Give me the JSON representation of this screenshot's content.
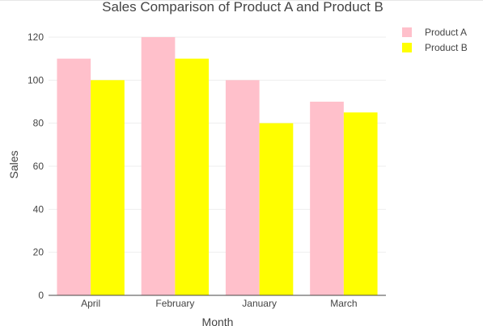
{
  "chart_data": {
    "type": "bar",
    "title": "Sales Comparison of Product A and Product B",
    "xlabel": "Month",
    "ylabel": "Sales",
    "categories": [
      "April",
      "February",
      "January",
      "March"
    ],
    "series": [
      {
        "name": "Product A",
        "values": [
          110,
          120,
          100,
          90
        ],
        "color": "#ffc0cb"
      },
      {
        "name": "Product B",
        "values": [
          100,
          110,
          80,
          85
        ],
        "color": "#ffff00"
      }
    ],
    "ylim": [
      0,
      126
    ],
    "yticks": [
      0,
      20,
      40,
      60,
      80,
      100,
      120
    ],
    "ytick_labels": [
      "0",
      "20",
      "40",
      "60",
      "80",
      "100",
      "120"
    ],
    "grid": true,
    "legend_position": "top-right"
  }
}
